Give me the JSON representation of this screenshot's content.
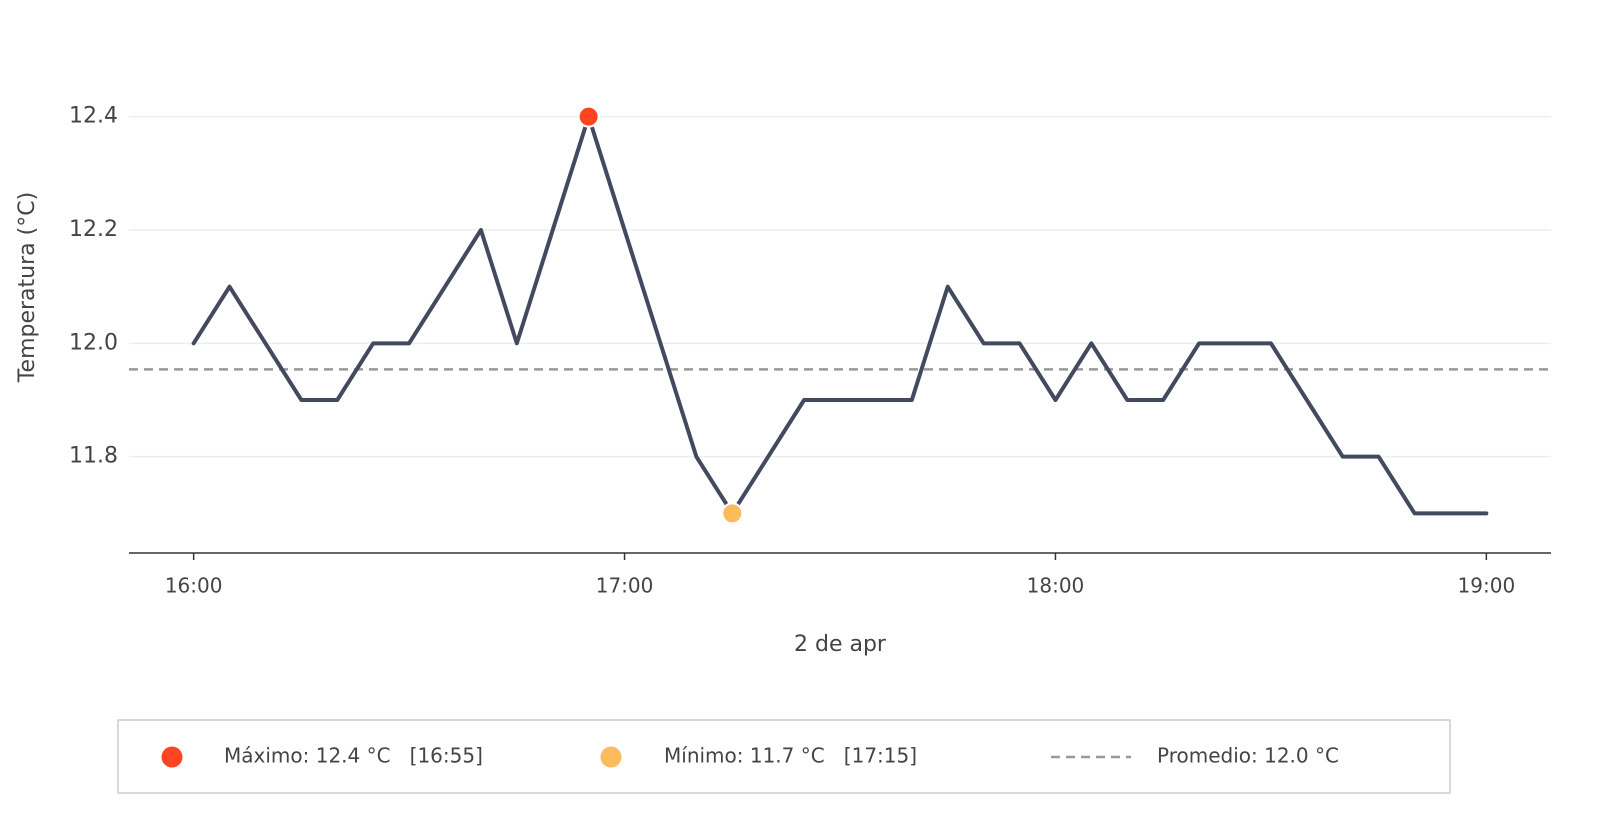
{
  "chart_data": {
    "type": "line",
    "x_label": "2 de apr",
    "y_label": "Temperatura (°C)",
    "x": [
      "16:00",
      "16:05",
      "16:10",
      "16:15",
      "16:20",
      "16:25",
      "16:30",
      "16:35",
      "16:40",
      "16:45",
      "16:50",
      "16:55",
      "17:00",
      "17:05",
      "17:10",
      "17:15",
      "17:20",
      "17:25",
      "17:30",
      "17:35",
      "17:40",
      "17:45",
      "17:50",
      "17:55",
      "18:00",
      "18:05",
      "18:10",
      "18:15",
      "18:20",
      "18:25",
      "18:30",
      "18:35",
      "18:40",
      "18:45",
      "18:50",
      "18:55",
      "19:00"
    ],
    "series": [
      {
        "color": "#434a5f",
        "values": [
          12.0,
          12.1,
          12.0,
          11.9,
          11.9,
          12.0,
          12.0,
          12.1,
          12.2,
          12.0,
          12.2,
          12.4,
          12.2,
          12.0,
          11.8,
          11.7,
          11.8,
          11.9,
          11.9,
          11.9,
          11.9,
          12.1,
          12.0,
          12.0,
          11.9,
          12.0,
          11.9,
          11.9,
          12.0,
          12.0,
          12.0,
          11.9,
          11.8,
          11.8,
          11.7,
          11.7,
          11.7
        ]
      }
    ],
    "xlim": [
      "15:51",
      "19:09"
    ],
    "xticks": [
      "16:00",
      "17:00",
      "18:00",
      "19:00"
    ],
    "ylim": [
      11.63,
      12.5
    ],
    "yticks": [
      11.8,
      {
        "value": 12,
        "label": "12.0"
      },
      12.2,
      12.4
    ],
    "grid": true,
    "mean": 11.954,
    "legend": [
      {
        "label": "Máximo: 12.4 °C   [16:55]",
        "color": "#ff4422"
      },
      {
        "label": "Mínimo: 11.7 °C   [17:15]",
        "color": "#fdbb5e"
      },
      {
        "label": "Promedio: 12.0 °C",
        "color": "#999999"
      }
    ]
  }
}
